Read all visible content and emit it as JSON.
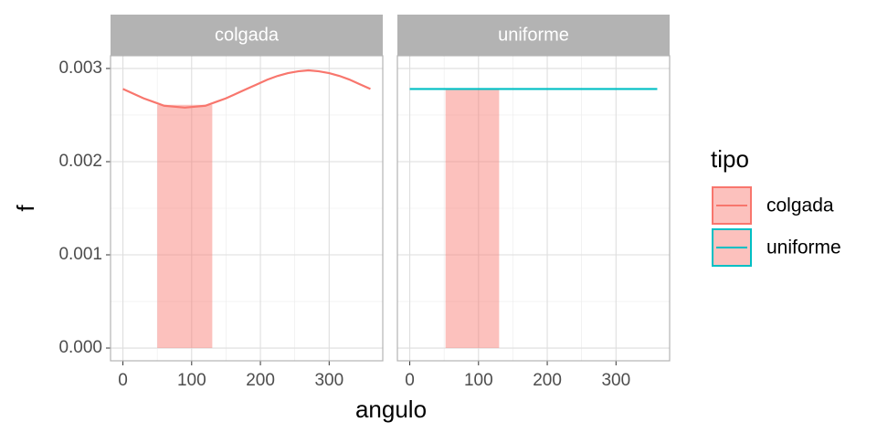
{
  "chart_data": {
    "type": "line",
    "x_label": "angulo",
    "y_label": "f",
    "xlim": [
      -18,
      378
    ],
    "xticks": [
      0,
      100,
      200,
      300
    ],
    "ylim": [
      -0.000137,
      0.003137
    ],
    "yticks": [
      {
        "value": 0,
        "label": "0.000"
      },
      {
        "value": 0.001,
        "label": "0.001"
      },
      {
        "value": 0.002,
        "label": "0.002"
      },
      {
        "value": 0.003,
        "label": "0.003"
      }
    ],
    "grid": true,
    "legend": {
      "title": "tipo",
      "position": "right",
      "fill": "#F8766D",
      "fill_opacity": 0.45,
      "entries": [
        {
          "name": "colgada",
          "color": "#F8766D"
        },
        {
          "name": "uniforme",
          "color": "#00BFC4"
        }
      ]
    },
    "facets": [
      {
        "title": "colgada",
        "shade": {
          "x": [
            50,
            130
          ],
          "y": 0.00261,
          "color": "#F8766D",
          "opacity": 0.45
        },
        "series": [
          {
            "name": "colgada",
            "color": "#F8766D",
            "x": [
              0,
              15,
              30,
              45,
              60,
              75,
              90,
              105,
              120,
              135,
              150,
              165,
              180,
              195,
              210,
              225,
              240,
              255,
              270,
              285,
              300,
              315,
              330,
              345,
              360
            ],
            "values": [
              0.00278,
              0.00273,
              0.00268,
              0.00264,
              0.0026,
              0.00259,
              0.00258,
              0.00259,
              0.0026,
              0.00264,
              0.00268,
              0.00273,
              0.00278,
              0.00283,
              0.00288,
              0.00292,
              0.00295,
              0.00297,
              0.00298,
              0.00297,
              0.00295,
              0.00292,
              0.00288,
              0.00283,
              0.00278
            ]
          }
        ]
      },
      {
        "title": "uniforme",
        "shade": {
          "x": [
            52,
            130
          ],
          "y": 0.00278,
          "color": "#F8766D",
          "opacity": 0.45
        },
        "series": [
          {
            "name": "uniforme",
            "color": "#00BFC4",
            "x": [
              0,
              360
            ],
            "values": [
              0.00278,
              0.00278
            ]
          }
        ]
      }
    ]
  }
}
